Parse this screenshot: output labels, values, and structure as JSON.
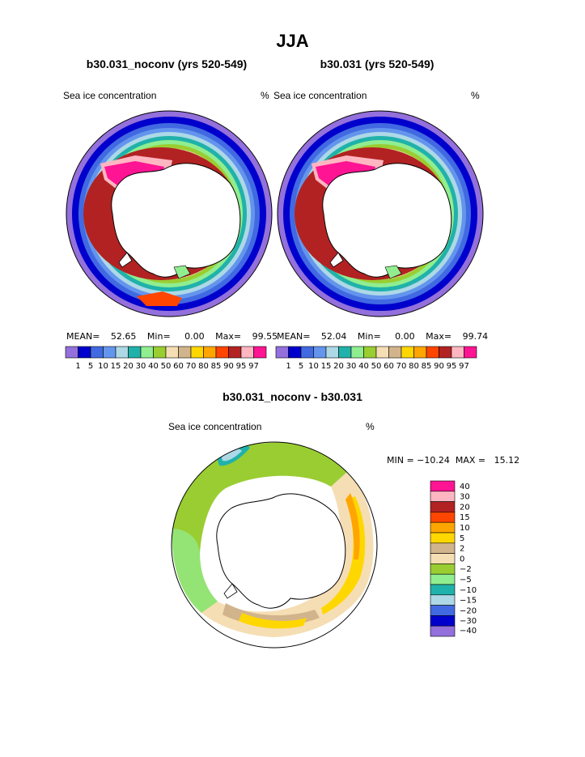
{
  "season": "JJA",
  "panels": [
    {
      "title": "b30.031_noconv (yrs 520-549)",
      "variable": "Sea ice concentration",
      "units": "%",
      "mean_label": "MEAN=",
      "mean": "52.65",
      "min_label": "Min=",
      "min": "0.00",
      "max_label": "Max=",
      "max": "99.55"
    },
    {
      "title": "b30.031 (yrs 520-549)",
      "variable": "Sea ice concentration",
      "units": "%",
      "mean_label": "MEAN=",
      "mean": "52.04",
      "min_label": "Min=",
      "min": "0.00",
      "max_label": "Max=",
      "max": "99.74"
    }
  ],
  "colorbar": {
    "colors": [
      "#9370DB",
      "#0000CD",
      "#4169E1",
      "#6495ED",
      "#ADD8E6",
      "#20B2AA",
      "#90EE90",
      "#9ACD32",
      "#F5DEB3",
      "#D2B48C",
      "#FFD700",
      "#FFA500",
      "#FF4500",
      "#B22222",
      "#FFB6C1",
      "#FF1493"
    ],
    "labels": [
      "1",
      "5",
      "10",
      "15",
      "20",
      "30",
      "40",
      "50",
      "60",
      "70",
      "80",
      "85",
      "90",
      "95",
      "97"
    ]
  },
  "diff": {
    "title": "b30.031_noconv - b30.031",
    "variable": "Sea ice concentration",
    "units": "%",
    "minmax": "MIN = −10.24  MAX =   15.12",
    "colorbar": {
      "colors": [
        "#FF1493",
        "#FFB6C1",
        "#B22222",
        "#FF4500",
        "#FFA500",
        "#FFD700",
        "#D2B48C",
        "#F5DEB3",
        "#9ACD32",
        "#90EE90",
        "#20B2AA",
        "#ADD8E6",
        "#4169E1",
        "#0000CD",
        "#9370DB"
      ],
      "labels": [
        "40",
        "30",
        "20",
        "15",
        "10",
        "5",
        "2",
        "0",
        "−2",
        "−5",
        "−10",
        "−15",
        "−20",
        "−30",
        "−40"
      ]
    }
  }
}
